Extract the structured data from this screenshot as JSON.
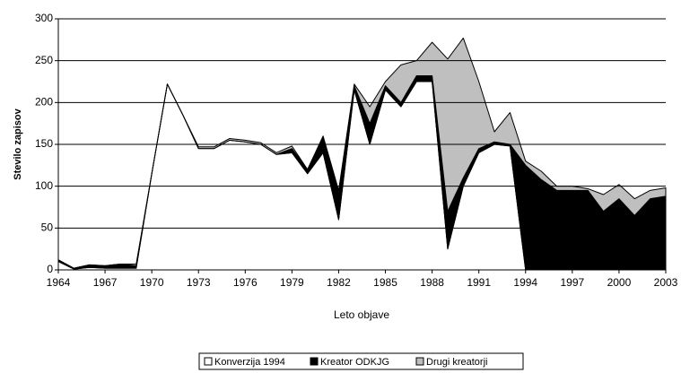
{
  "chart_data": {
    "type": "stacked_area",
    "x_label": "Leto objave",
    "y_label": "Stevilo zapisov",
    "x": [
      1964,
      1965,
      1966,
      1967,
      1968,
      1969,
      1970,
      1971,
      1972,
      1973,
      1974,
      1975,
      1976,
      1977,
      1978,
      1979,
      1980,
      1981,
      1982,
      1983,
      1984,
      1985,
      1986,
      1987,
      1988,
      1989,
      1990,
      1991,
      1992,
      1993,
      1994,
      1995,
      1996,
      1997,
      1998,
      1999,
      2000,
      2001,
      2002,
      2003
    ],
    "series": [
      {
        "name": "Konverzija 1994",
        "color": "#ffffff",
        "values": [
          10,
          1,
          3,
          2,
          2,
          2,
          115,
          222,
          185,
          145,
          145,
          155,
          153,
          150,
          138,
          140,
          115,
          140,
          60,
          215,
          150,
          215,
          195,
          225,
          225,
          25,
          100,
          140,
          150,
          148,
          0,
          0,
          0,
          0,
          0,
          0,
          0,
          0,
          0,
          0
        ]
      },
      {
        "name": "Kreator ODKJG",
        "color": "#000000",
        "values": [
          2,
          1,
          3,
          3,
          5,
          3,
          0,
          0,
          0,
          0,
          0,
          0,
          0,
          0,
          0,
          5,
          5,
          18,
          33,
          5,
          25,
          5,
          5,
          7,
          7,
          45,
          10,
          5,
          3,
          2,
          125,
          108,
          95,
          95,
          95,
          70,
          85,
          65,
          85,
          88
        ]
      },
      {
        "name": "Drugi kreatorji",
        "color": "#bfbfbf",
        "values": [
          0,
          0,
          0,
          0,
          0,
          2,
          0,
          0,
          0,
          2,
          2,
          2,
          2,
          2,
          2,
          3,
          0,
          2,
          2,
          2,
          20,
          5,
          45,
          18,
          40,
          182,
          167,
          80,
          12,
          38,
          5,
          10,
          5,
          5,
          2,
          20,
          17,
          20,
          10,
          10
        ]
      }
    ],
    "xlim": [
      1964,
      2003
    ],
    "xticks": [
      1964,
      1967,
      1970,
      1973,
      1976,
      1979,
      1982,
      1985,
      1988,
      1991,
      1994,
      1997,
      2000,
      2003
    ],
    "ylim": [
      0,
      300
    ],
    "yticks": [
      0,
      50,
      100,
      150,
      200,
      250,
      300
    ],
    "grid": true,
    "legend": "bottom"
  }
}
